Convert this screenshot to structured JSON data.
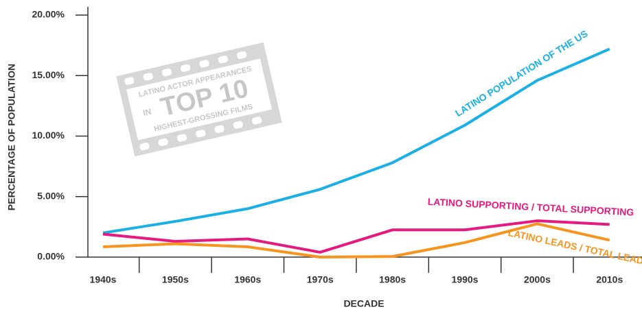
{
  "chart_data": {
    "type": "line",
    "xlabel": "DECADE",
    "ylabel": "PERCENTAGE OF POPULATION",
    "categories": [
      "1940s",
      "1950s",
      "1960s",
      "1970s",
      "1980s",
      "1990s",
      "2000s",
      "2010s"
    ],
    "series": [
      {
        "name": "LATINO POPULATION OF THE US",
        "color": "#1ab0e6",
        "values": [
          2.0,
          2.95,
          4.0,
          5.6,
          7.8,
          10.9,
          14.6,
          17.2
        ]
      },
      {
        "name": "LATINO SUPPORTING / TOTAL SUPPORTING",
        "color": "#e5197f",
        "values": [
          1.9,
          1.3,
          1.5,
          0.4,
          2.25,
          2.25,
          3.0,
          2.7
        ]
      },
      {
        "name": "LATINO LEADS / TOTAL LEADS",
        "color": "#f7941d",
        "values": [
          0.85,
          1.1,
          0.85,
          0.0,
          0.05,
          1.2,
          2.75,
          1.4
        ]
      }
    ],
    "ylim": [
      0,
      20
    ],
    "yticks": [
      {
        "value": 0,
        "label": "0.00%"
      },
      {
        "value": 5,
        "label": "5.00%"
      },
      {
        "value": 10,
        "label": "10.00%"
      },
      {
        "value": 15,
        "label": "15.00%"
      },
      {
        "value": 20,
        "label": "20.00%"
      }
    ],
    "grid": false,
    "stamp": {
      "line1": "LATINO ACTOR APPEARANCES",
      "line2": "IN",
      "line3": "TOP 10",
      "line4": "HIGHEST-GROSSING FILMS"
    }
  }
}
